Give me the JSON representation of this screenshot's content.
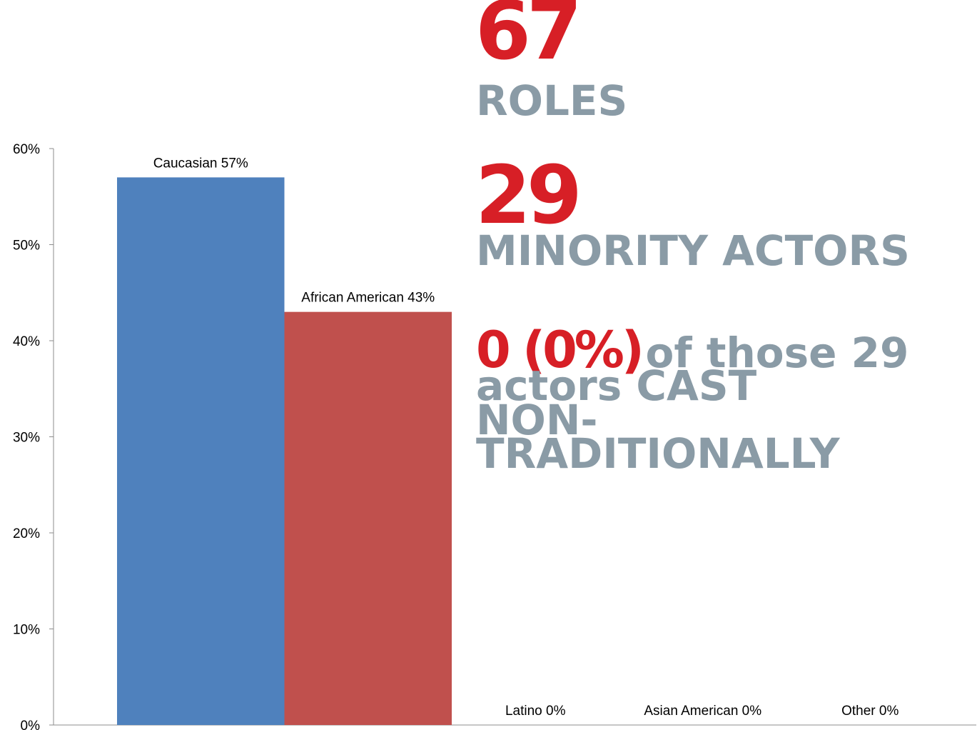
{
  "chart_data": {
    "type": "bar",
    "categories": [
      "Caucasian",
      "African American",
      "Latino",
      "Asian American",
      "Other"
    ],
    "values": [
      57,
      43,
      0,
      0,
      0
    ],
    "data_labels": [
      "Caucasian 57%",
      "African American 43%",
      "Latino 0%",
      "Asian American 0%",
      "Other 0%"
    ],
    "ylim": [
      0,
      60
    ],
    "yticks": [
      "0%",
      "10%",
      "20%",
      "30%",
      "40%",
      "50%",
      "60%"
    ],
    "colors": [
      "#4f81bd",
      "#c0504d",
      "#9bbb59",
      "#8064a2",
      "#4bacc6"
    ],
    "grid": false,
    "legend": "none"
  },
  "callouts": {
    "stat1_number": "67",
    "stat1_label": "ROLES",
    "stat2_number": "29",
    "stat2_label": "MINORITY ACTORS",
    "stat3_number": "0 (0%)",
    "stat3_text_line1": "of those 29",
    "stat3_text_rest": "actors CAST NON-TRADITIONALLY"
  },
  "colors": {
    "accent_red": "#d71f26",
    "text_grey": "#8a9ba6"
  }
}
